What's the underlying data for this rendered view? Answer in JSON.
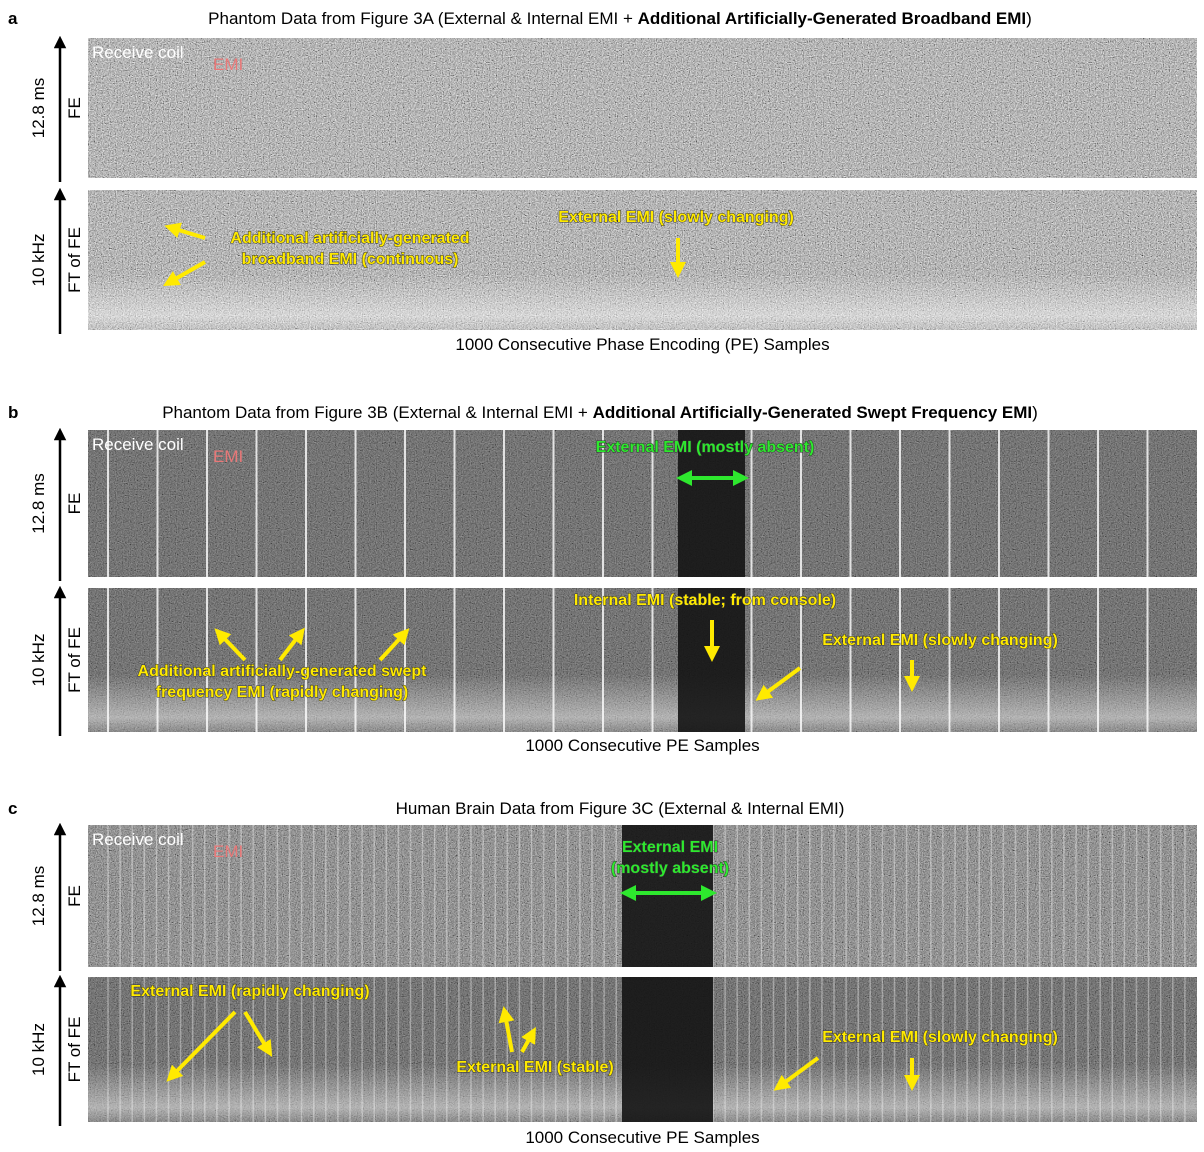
{
  "panels": [
    {
      "label": "a",
      "title": {
        "text": "Phantom Data from Figure 3A  (External & Internal EMI + ",
        "bold": "Additional Artificially-Generated Broadband EMI",
        "end": ")"
      },
      "top_axis": {
        "duration": "12.8 ms",
        "name": "FE"
      },
      "bottom_axis": {
        "bandwidth": "10 kHz",
        "name": "FT of FE"
      },
      "legend": {
        "coil": "Receive coil",
        "emi": "EMI"
      },
      "annotations": [
        {
          "lines": [
            "Additional artificially-generated",
            "broadband EMI (continuous)"
          ]
        },
        {
          "lines": [
            "External EMI (slowly changing)"
          ]
        }
      ],
      "x_label": "1000 Consecutive Phase Encoding (PE) Samples"
    },
    {
      "label": "b",
      "title": {
        "text": "Phantom Data from Figure 3B (External & Internal EMI + ",
        "bold": "Additional Artificially-Generated Swept Frequency EMI",
        "end": ")"
      },
      "top_axis": {
        "duration": "12.8 ms",
        "name": "FE"
      },
      "bottom_axis": {
        "bandwidth": "10 kHz",
        "name": "FT of FE"
      },
      "legend": {
        "coil": "Receive coil",
        "emi": "EMI"
      },
      "annotations": [
        {
          "lines": [
            "External EMI (mostly absent)"
          ]
        },
        {
          "lines": [
            "Internal EMI (stable; from console)"
          ]
        },
        {
          "lines": [
            "External EMI (slowly changing)"
          ]
        },
        {
          "lines": [
            "Additional artificially-generated swept",
            "frequency EMI (rapidly changing)"
          ]
        }
      ],
      "x_label": "1000 Consecutive PE Samples"
    },
    {
      "label": "c",
      "title": {
        "text": "Human Brain Data from Figure 3C (External & Internal EMI)"
      },
      "top_axis": {
        "duration": "12.8 ms",
        "name": "FE"
      },
      "bottom_axis": {
        "bandwidth": "10 kHz",
        "name": "FT of FE"
      },
      "legend": {
        "coil": "Receive coil",
        "emi": "EMI"
      },
      "annotations": [
        {
          "lines": [
            "External EMI",
            "(mostly absent)"
          ]
        },
        {
          "lines": [
            "External EMI (rapidly changing)"
          ]
        },
        {
          "lines": [
            "External EMI (stable)"
          ]
        },
        {
          "lines": [
            "External EMI (slowly changing)"
          ]
        }
      ],
      "x_label": "1000 Consecutive PE Samples"
    }
  ]
}
